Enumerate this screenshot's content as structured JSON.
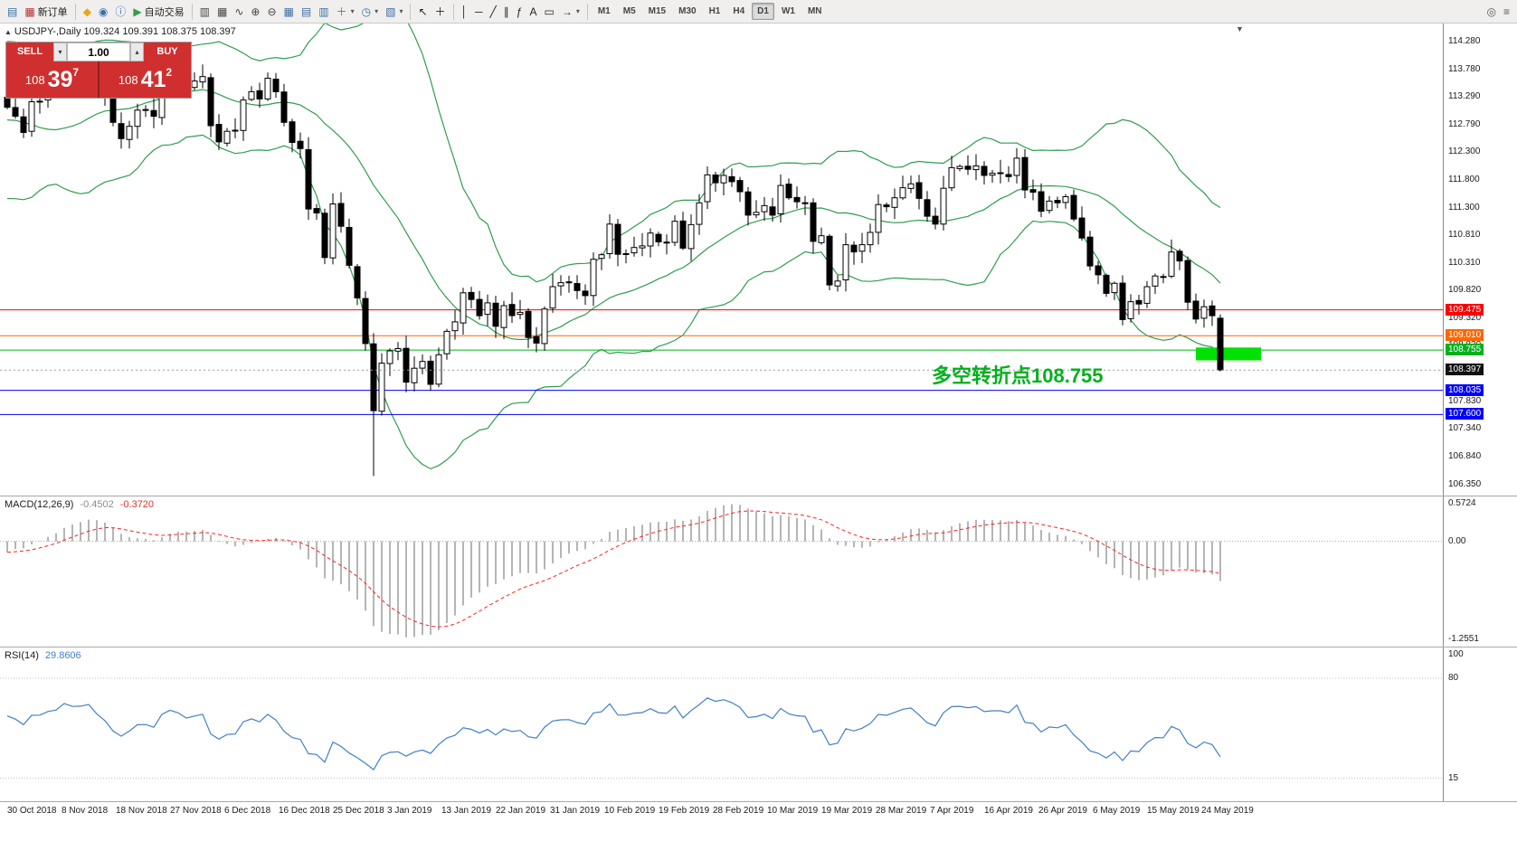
{
  "toolbar": {
    "dropdown_glyph": "▾",
    "buttons": [
      {
        "name": "chart-window-icon",
        "glyph": "▤",
        "color": "#3a6ea5"
      },
      {
        "name": "new-order-button",
        "glyph": "▦",
        "color": "#b03030",
        "label": "新订单"
      },
      {
        "sep": true
      },
      {
        "name": "metaeditor-icon",
        "glyph": "◆",
        "color": "#e6a817"
      },
      {
        "name": "community-icon",
        "glyph": "◉",
        "color": "#3a6ea5"
      },
      {
        "name": "info-icon",
        "glyph": "ⓘ",
        "color": "#3a6ea5"
      },
      {
        "name": "autotrading-button",
        "glyph": "▶",
        "color": "#2f9e44",
        "label": "自动交易"
      },
      {
        "sep": true
      },
      {
        "name": "bar-chart-icon",
        "glyph": "▥",
        "color": "#444444"
      },
      {
        "name": "candlestick-chart-icon",
        "glyph": "▦",
        "color": "#444444"
      },
      {
        "name": "line-chart-icon",
        "glyph": "∿",
        "color": "#444444"
      },
      {
        "name": "zoom-in-icon",
        "glyph": "⊕",
        "color": "#444444"
      },
      {
        "name": "zoom-out-icon",
        "glyph": "⊖",
        "color": "#444444"
      },
      {
        "name": "tile-windows-icon",
        "glyph": "▦",
        "color": "#3a6ea5"
      },
      {
        "name": "arrange-horizontal-icon",
        "glyph": "▤",
        "color": "#3a6ea5"
      },
      {
        "name": "arrange-vertical-icon",
        "glyph": "▥",
        "color": "#3a6ea5"
      },
      {
        "name": "new-chart-icon",
        "glyph": "＋",
        "color": "#2f9e44",
        "dropdown": true
      },
      {
        "name": "period-icon",
        "glyph": "◷",
        "color": "#3a6ea5",
        "dropdown": true
      },
      {
        "name": "template-icon",
        "glyph": "▧",
        "color": "#3a6ea5",
        "dropdown": true
      },
      {
        "sep": true
      },
      {
        "name": "cursor-icon",
        "glyph": "↖",
        "color": "#222222"
      },
      {
        "name": "crosshair-icon",
        "glyph": "＋",
        "color": "#222222"
      },
      {
        "sep": true
      },
      {
        "name": "vertical-line-icon",
        "glyph": "│",
        "color": "#222222"
      },
      {
        "name": "horizontal-line-icon",
        "glyph": "─",
        "color": "#222222"
      },
      {
        "name": "trendline-icon",
        "glyph": "╱",
        "color": "#222222"
      },
      {
        "name": "channel-icon",
        "glyph": "∥",
        "color": "#222222"
      },
      {
        "name": "fibonacci-icon",
        "glyph": "ƒ",
        "color": "#222222"
      },
      {
        "name": "text-icon",
        "glyph": "A",
        "color": "#222222"
      },
      {
        "name": "label-icon",
        "glyph": "▭",
        "color": "#222222"
      },
      {
        "name": "arrows-icon",
        "glyph": "→",
        "color": "#222222",
        "dropdown": true
      },
      {
        "sep": true
      }
    ],
    "timeframes": [
      {
        "label": "M1"
      },
      {
        "label": "M5"
      },
      {
        "label": "M15"
      },
      {
        "label": "M30"
      },
      {
        "label": "H1"
      },
      {
        "label": "H4"
      },
      {
        "label": "D1",
        "active": true
      },
      {
        "label": "W1"
      },
      {
        "label": "MN"
      }
    ],
    "right_buttons": [
      {
        "name": "search-icon",
        "glyph": "◎",
        "color": "#555555"
      },
      {
        "name": "options-icon",
        "glyph": "≡",
        "color": "#555555"
      }
    ]
  },
  "trade": {
    "sell_label": "SELL",
    "buy_label": "BUY",
    "volume": "1.00",
    "spin_down": "▾",
    "spin_up": "▴",
    "sell_price": {
      "prefix": "108",
      "big": "39",
      "sup": "7"
    },
    "buy_price": {
      "prefix": "108",
      "big": "41",
      "sup": "2"
    }
  },
  "annotation": {
    "text": "多空转折点108.755",
    "color": "#00b01c"
  },
  "macd": {
    "label": "MACD(12,26,9)",
    "value_main": "-0.4502",
    "value_signal": "-0.3720",
    "axis_max": "0.5724",
    "axis_zero": "0.00",
    "axis_min": "-1.2551"
  },
  "rsi": {
    "label": "RSI(14)",
    "value": "29.8606",
    "axis_top": "100",
    "axis_upper": "80",
    "axis_lower": "15",
    "level_upper": 80,
    "level_lower": 15
  },
  "colors": {
    "trade_red": "#d02f2f",
    "bollinger": "#2e9e4f",
    "macd_histogram": "#b5b5b5",
    "macd_signal": "#ff2222",
    "rsi_line": "#4080c8",
    "current_price_bg": "#111111",
    "candle_bull": "#ffffff",
    "candle_bear": "#000000"
  },
  "chart_data": {
    "type": "candlestick",
    "symbol_info": "USDJPY-,Daily 109.324 109.391 108.375 108.397",
    "expand_marker": "▲",
    "scroll_marker": "▼",
    "price_top": 114.6,
    "price_bottom": 106.15,
    "current_price": 108.397,
    "current_price_label": "108.397",
    "first_open": 113.28,
    "axis_labels": [
      "114.280",
      "113.780",
      "113.290",
      "112.790",
      "112.300",
      "111.800",
      "111.300",
      "110.810",
      "110.310",
      "109.820",
      "109.320",
      "108.830",
      "108.330",
      "107.830",
      "107.340",
      "106.840",
      "106.350"
    ],
    "hlines": [
      {
        "price": 109.475,
        "label": "109.475",
        "color": "#ff0000"
      },
      {
        "price": 109.01,
        "label": "109.010",
        "color": "#ff6600"
      },
      {
        "price": 108.755,
        "label": "108.755",
        "color": "#00b21c"
      },
      {
        "price": 108.035,
        "label": "108.035",
        "color": "#0000ff"
      },
      {
        "price": 107.6,
        "label": "107.600",
        "color": "#0000ff"
      }
    ],
    "rectangle": {
      "bar_start": 146,
      "bar_end": 154,
      "price_top": 108.8,
      "price_bottom": 108.57,
      "color": "#00e100"
    },
    "x_dates": [
      "30 Oct 2018",
      "8 Nov 2018",
      "18 Nov 2018",
      "27 Nov 2018",
      "6 Dec 2018",
      "16 Dec 2018",
      "25 Dec 2018",
      "3 Jan 2019",
      "13 Jan 2019",
      "22 Jan 2019",
      "31 Jan 2019",
      "10 Feb 2019",
      "19 Feb 2019",
      "28 Feb 2019",
      "10 Mar 2019",
      "19 Mar 2019",
      "28 Mar 2019",
      "7 Apr 2019",
      "16 Apr 2019",
      "26 Apr 2019",
      "6 May 2019",
      "15 May 2019",
      "24 May 2019"
    ],
    "pre_closes": [
      112.8,
      113.1,
      113.45,
      113.9,
      114.3,
      114.05,
      113.7,
      113.35,
      113.1,
      112.75,
      112.25,
      112.05,
      112.3,
      112.5,
      112.25,
      112.45,
      112.15,
      111.95,
      112.2,
      112.6
    ],
    "closes": [
      113.1,
      112.94,
      112.65,
      113.2,
      113.21,
      113.43,
      113.52,
      113.95,
      113.83,
      113.85,
      113.95,
      113.6,
      113.32,
      112.83,
      112.54,
      112.76,
      113.05,
      113.06,
      112.94,
      113.56,
      113.78,
      113.68,
      113.47,
      113.57,
      113.65,
      112.77,
      112.48,
      112.67,
      112.69,
      113.23,
      113.38,
      113.25,
      113.62,
      113.38,
      112.83,
      112.47,
      112.36,
      111.28,
      111.21,
      110.41,
      111.37,
      110.97,
      110.27,
      109.69,
      108.87,
      107.67,
      108.52,
      108.74,
      108.78,
      108.18,
      108.43,
      108.55,
      108.14,
      108.67,
      109.09,
      109.26,
      109.78,
      109.66,
      109.37,
      109.6,
      109.18,
      109.55,
      109.37,
      109.43,
      108.98,
      108.88,
      109.49,
      109.89,
      109.96,
      109.97,
      109.82,
      109.73,
      110.38,
      110.46,
      111.01,
      110.47,
      110.48,
      110.59,
      110.62,
      110.85,
      110.69,
      110.67,
      111.06,
      110.58,
      111.0,
      111.39,
      111.89,
      111.75,
      111.88,
      111.77,
      111.59,
      111.17,
      111.22,
      111.34,
      111.17,
      111.7,
      111.48,
      111.41,
      111.39,
      110.7,
      110.8,
      109.92,
      109.99,
      110.64,
      110.51,
      110.64,
      110.86,
      111.36,
      111.32,
      111.48,
      111.66,
      111.73,
      111.47,
      111.15,
      111.01,
      111.65,
      112.02,
      112.04,
      111.99,
      112.05,
      111.88,
      111.92,
      111.92,
      111.86,
      112.19,
      111.62,
      111.58,
      111.24,
      111.42,
      111.39,
      111.5,
      111.1,
      110.76,
      110.26,
      110.1,
      109.77,
      109.95,
      109.3,
      109.62,
      109.58,
      109.89,
      110.08,
      110.07,
      110.51,
      110.35,
      109.61,
      109.31,
      109.53,
      109.37,
      108.397
    ],
    "special_bars": {
      "45": {
        "low": 106.5
      },
      "149": {
        "open": 109.324,
        "high": 109.391,
        "low": 108.375,
        "close": 108.397
      }
    }
  }
}
